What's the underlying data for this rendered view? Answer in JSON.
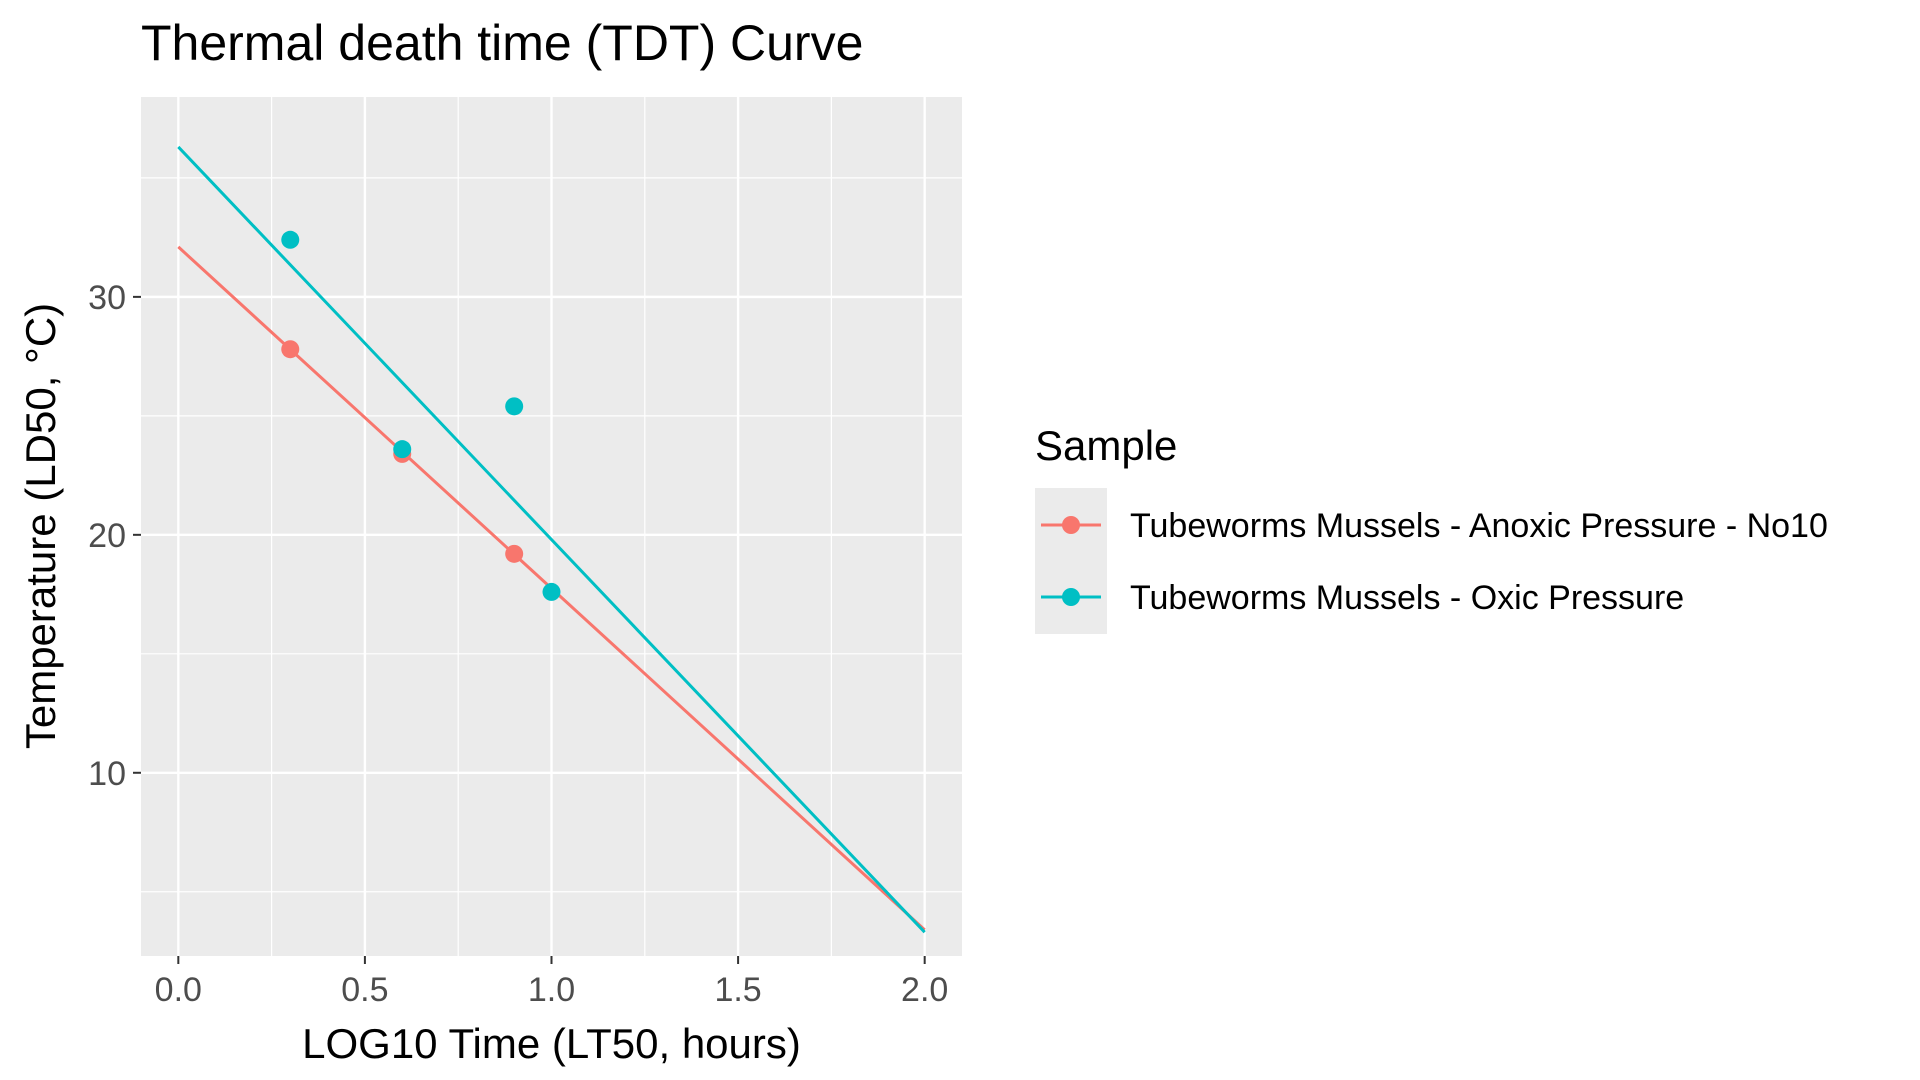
{
  "chart_data": {
    "type": "scatter",
    "title": "Thermal death time (TDT) Curve",
    "xlabel": "LOG10 Time (LT50, hours)",
    "ylabel": "Temperature (LD50, °C)",
    "xlim": [
      -0.1,
      2.1
    ],
    "ylim": [
      2.3,
      38.4
    ],
    "x_ticks": [
      0.0,
      0.5,
      1.0,
      1.5,
      2.0
    ],
    "x_tick_labels": [
      "0.0",
      "0.5",
      "1.0",
      "1.5",
      "2.0"
    ],
    "y_ticks": [
      10,
      20,
      30
    ],
    "y_tick_labels": [
      "10",
      "20",
      "30"
    ],
    "x_minor": [
      0.25,
      0.75,
      1.25,
      1.75
    ],
    "y_minor": [
      5,
      15,
      25,
      35
    ],
    "grid": true,
    "legend": {
      "title": "Sample",
      "position": "right"
    },
    "series": [
      {
        "name": "Tubeworms Mussels - Anoxic Pressure - No10",
        "color": "#F8766D",
        "points": [
          {
            "x": 0.3,
            "y": 27.8
          },
          {
            "x": 0.6,
            "y": 23.4
          },
          {
            "x": 0.9,
            "y": 19.2
          }
        ],
        "fit_line": [
          {
            "x": 0.0,
            "y": 32.1
          },
          {
            "x": 2.0,
            "y": 3.4
          }
        ]
      },
      {
        "name": "Tubeworms Mussels - Oxic Pressure",
        "color": "#00BFC4",
        "points": [
          {
            "x": 0.3,
            "y": 32.4
          },
          {
            "x": 0.6,
            "y": 23.6
          },
          {
            "x": 0.9,
            "y": 25.4
          },
          {
            "x": 1.0,
            "y": 17.6
          }
        ],
        "fit_line": [
          {
            "x": 0.0,
            "y": 36.3
          },
          {
            "x": 2.0,
            "y": 3.3
          }
        ]
      }
    ]
  }
}
